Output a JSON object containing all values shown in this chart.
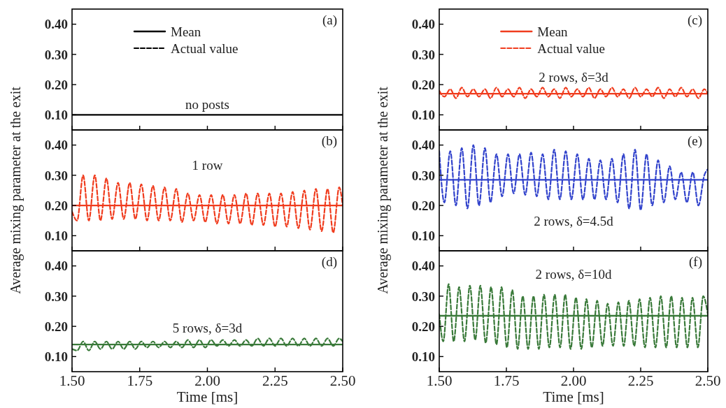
{
  "chart_data": [
    {
      "type": "line",
      "annotations": [
        "(a)",
        "no posts"
      ],
      "xlim": [
        1.5,
        2.5
      ],
      "ylim": [
        0.05,
        0.45
      ],
      "xticks": [
        {
          "value": 1.5,
          "label": null
        },
        {
          "value": 1.75,
          "label": null
        },
        {
          "value": 2.0,
          "label": null
        },
        {
          "value": 2.25,
          "label": null
        },
        {
          "value": 2.5,
          "label": null
        }
      ],
      "yticks": [
        {
          "value": 0.1,
          "label": "0.10"
        },
        {
          "value": 0.2,
          "label": "0.20"
        },
        {
          "value": 0.3,
          "label": "0.30"
        },
        {
          "value": 0.4,
          "label": "0.40"
        }
      ],
      "tick_labels": "y",
      "legend": "top",
      "series": [
        {
          "name": "Mean",
          "type": "line",
          "line_style": "solid",
          "color": "#000000",
          "x": [
            1.5,
            2.5
          ],
          "values": [
            0.1,
            0.1
          ]
        },
        {
          "name": "Actual value",
          "type": "line",
          "line_style": "dashed",
          "color": "#000000",
          "values": [
            null
          ]
        }
      ]
    },
    {
      "type": "line",
      "annotations": [
        "(c)",
        "2 rows, δ=3d"
      ],
      "xlim": [
        1.5,
        2.5
      ],
      "ylim": [
        0.05,
        0.45
      ],
      "xticks": [
        {
          "value": 1.5,
          "label": null
        },
        {
          "value": 1.75,
          "label": null
        },
        {
          "value": 2.0,
          "label": null
        },
        {
          "value": 2.25,
          "label": null
        },
        {
          "value": 2.5,
          "label": null
        }
      ],
      "yticks": [
        {
          "value": 0.1,
          "label": "0.10"
        },
        {
          "value": 0.2,
          "label": "0.20"
        },
        {
          "value": 0.3,
          "label": "0.30"
        },
        {
          "value": 0.4,
          "label": "0.40"
        }
      ],
      "tick_labels": "y",
      "legend": "top",
      "series": [
        {
          "name": "Mean",
          "type": "line",
          "line_style": "solid",
          "color": "#f03c1e",
          "x": [
            1.5,
            2.5
          ],
          "values": [
            0.17,
            0.17
          ]
        },
        {
          "name": "Actual value",
          "type": "line",
          "line_style": "dashed",
          "color": "#f03c1e",
          "x": [
            1.5,
            1.519,
            1.541,
            1.562,
            1.584,
            1.605,
            1.627,
            1.648,
            1.67,
            1.691,
            1.713,
            1.734,
            1.756,
            1.777,
            1.799,
            1.82,
            1.842,
            1.863,
            1.885,
            1.906,
            1.928,
            1.949,
            1.971,
            1.992,
            2.014,
            2.035,
            2.057,
            2.078,
            2.1,
            2.121,
            2.143,
            2.164,
            2.186,
            2.207,
            2.229,
            2.25,
            2.272,
            2.293,
            2.315,
            2.336,
            2.358,
            2.379,
            2.401,
            2.422,
            2.444,
            2.465,
            2.487,
            2.5
          ],
          "values": [
            0.18,
            0.16,
            0.185,
            0.155,
            0.19,
            0.16,
            0.185,
            0.16,
            0.185,
            0.155,
            0.19,
            0.16,
            0.185,
            0.16,
            0.19,
            0.155,
            0.185,
            0.16,
            0.19,
            0.16,
            0.185,
            0.155,
            0.19,
            0.16,
            0.185,
            0.16,
            0.19,
            0.155,
            0.185,
            0.16,
            0.19,
            0.16,
            0.185,
            0.155,
            0.19,
            0.16,
            0.185,
            0.16,
            0.19,
            0.155,
            0.185,
            0.16,
            0.19,
            0.16,
            0.185,
            0.155,
            0.185,
            0.17
          ]
        }
      ]
    },
    {
      "type": "line",
      "annotations": [
        "(b)",
        "1 row"
      ],
      "ylabel": "Average mixing parameter at the exit",
      "xlim": [
        1.5,
        2.5
      ],
      "ylim": [
        0.05,
        0.45
      ],
      "xticks": [
        {
          "value": 1.5,
          "label": null
        },
        {
          "value": 1.75,
          "label": null
        },
        {
          "value": 2.0,
          "label": null
        },
        {
          "value": 2.25,
          "label": null
        },
        {
          "value": 2.5,
          "label": null
        }
      ],
      "yticks": [
        {
          "value": 0.1,
          "label": "0.10"
        },
        {
          "value": 0.2,
          "label": "0.20"
        },
        {
          "value": 0.3,
          "label": "0.30"
        },
        {
          "value": 0.4,
          "label": "0.40"
        }
      ],
      "tick_labels": "y",
      "series": [
        {
          "type": "line",
          "line_style": "dashed",
          "color": "#f03c1e",
          "x": [
            1.5,
            1.519,
            1.541,
            1.562,
            1.584,
            1.605,
            1.627,
            1.648,
            1.67,
            1.691,
            1.713,
            1.734,
            1.756,
            1.777,
            1.799,
            1.82,
            1.842,
            1.863,
            1.885,
            1.906,
            1.928,
            1.949,
            1.971,
            1.992,
            2.014,
            2.035,
            2.057,
            2.078,
            2.1,
            2.121,
            2.143,
            2.164,
            2.186,
            2.207,
            2.229,
            2.25,
            2.272,
            2.293,
            2.315,
            2.336,
            2.358,
            2.379,
            2.401,
            2.422,
            2.444,
            2.465,
            2.487,
            2.5
          ],
          "values": [
            0.18,
            0.15,
            0.3,
            0.15,
            0.3,
            0.15,
            0.29,
            0.155,
            0.275,
            0.155,
            0.275,
            0.155,
            0.27,
            0.15,
            0.265,
            0.15,
            0.26,
            0.15,
            0.255,
            0.145,
            0.24,
            0.15,
            0.235,
            0.145,
            0.235,
            0.14,
            0.235,
            0.14,
            0.235,
            0.14,
            0.24,
            0.135,
            0.24,
            0.135,
            0.24,
            0.13,
            0.24,
            0.13,
            0.245,
            0.125,
            0.25,
            0.12,
            0.255,
            0.115,
            0.255,
            0.11,
            0.26,
            0.2
          ]
        },
        {
          "type": "line",
          "line_style": "solid",
          "color": "#f03c1e",
          "x": [
            1.5,
            2.5
          ],
          "values": [
            0.2,
            0.2
          ]
        }
      ]
    },
    {
      "type": "line",
      "annotations": [
        "(e)",
        "2 rows, δ=4.5d"
      ],
      "ylabel": "Average mixing parameter at the exit",
      "xlim": [
        1.5,
        2.5
      ],
      "ylim": [
        0.05,
        0.45
      ],
      "xticks": [
        {
          "value": 1.5,
          "label": null
        },
        {
          "value": 1.75,
          "label": null
        },
        {
          "value": 2.0,
          "label": null
        },
        {
          "value": 2.25,
          "label": null
        },
        {
          "value": 2.5,
          "label": null
        }
      ],
      "yticks": [
        {
          "value": 0.1,
          "label": "0.10"
        },
        {
          "value": 0.2,
          "label": "0.20"
        },
        {
          "value": 0.3,
          "label": "0.30"
        },
        {
          "value": 0.4,
          "label": "0.40"
        }
      ],
      "tick_labels": "y",
      "series": [
        {
          "type": "line",
          "line_style": "dashed",
          "color": "#3344cc",
          "x": [
            1.5,
            1.519,
            1.541,
            1.562,
            1.584,
            1.605,
            1.627,
            1.648,
            1.67,
            1.691,
            1.713,
            1.734,
            1.756,
            1.777,
            1.799,
            1.82,
            1.842,
            1.863,
            1.885,
            1.906,
            1.928,
            1.949,
            1.971,
            1.992,
            2.014,
            2.035,
            2.057,
            2.078,
            2.1,
            2.121,
            2.143,
            2.164,
            2.186,
            2.207,
            2.229,
            2.25,
            2.272,
            2.293,
            2.315,
            2.336,
            2.358,
            2.379,
            2.401,
            2.422,
            2.444,
            2.465,
            2.487,
            2.5
          ],
          "values": [
            0.38,
            0.21,
            0.38,
            0.2,
            0.39,
            0.19,
            0.4,
            0.2,
            0.39,
            0.21,
            0.37,
            0.23,
            0.37,
            0.24,
            0.37,
            0.235,
            0.375,
            0.23,
            0.37,
            0.22,
            0.385,
            0.22,
            0.38,
            0.22,
            0.37,
            0.22,
            0.355,
            0.22,
            0.35,
            0.22,
            0.355,
            0.21,
            0.37,
            0.19,
            0.385,
            0.185,
            0.37,
            0.2,
            0.35,
            0.21,
            0.33,
            0.22,
            0.31,
            0.21,
            0.31,
            0.2,
            0.3,
            0.32
          ]
        },
        {
          "type": "line",
          "line_style": "solid",
          "color": "#3344cc",
          "x": [
            1.5,
            2.5
          ],
          "values": [
            0.285,
            0.285
          ]
        }
      ]
    },
    {
      "type": "line",
      "annotations": [
        "(d)",
        "5 rows, δ=3d"
      ],
      "xlabel": "Time [ms]",
      "xlim": [
        1.5,
        2.5
      ],
      "ylim": [
        0.05,
        0.45
      ],
      "xticks": [
        {
          "value": 1.5,
          "label": "1.50"
        },
        {
          "value": 1.75,
          "label": "1.75"
        },
        {
          "value": 2.0,
          "label": "2.00"
        },
        {
          "value": 2.25,
          "label": "2.25"
        },
        {
          "value": 2.5,
          "label": "2.50"
        }
      ],
      "yticks": [
        {
          "value": 0.1,
          "label": "0.10"
        },
        {
          "value": 0.2,
          "label": "0.20"
        },
        {
          "value": 0.3,
          "label": "0.30"
        },
        {
          "value": 0.4,
          "label": "0.40"
        }
      ],
      "series": [
        {
          "type": "line",
          "line_style": "dashed",
          "color": "#3a7a3a",
          "x": [
            1.5,
            1.519,
            1.541,
            1.562,
            1.584,
            1.605,
            1.627,
            1.648,
            1.67,
            1.691,
            1.713,
            1.734,
            1.756,
            1.777,
            1.799,
            1.82,
            1.842,
            1.863,
            1.885,
            1.906,
            1.928,
            1.949,
            1.971,
            1.992,
            2.014,
            2.035,
            2.057,
            2.078,
            2.1,
            2.121,
            2.143,
            2.164,
            2.186,
            2.207,
            2.229,
            2.25,
            2.272,
            2.293,
            2.315,
            2.336,
            2.358,
            2.379,
            2.401,
            2.422,
            2.444,
            2.465,
            2.487,
            2.5
          ],
          "values": [
            0.125,
            0.12,
            0.15,
            0.12,
            0.15,
            0.125,
            0.15,
            0.125,
            0.15,
            0.125,
            0.15,
            0.125,
            0.15,
            0.13,
            0.15,
            0.13,
            0.15,
            0.13,
            0.15,
            0.13,
            0.155,
            0.13,
            0.155,
            0.13,
            0.155,
            0.135,
            0.155,
            0.135,
            0.155,
            0.135,
            0.155,
            0.135,
            0.16,
            0.135,
            0.16,
            0.135,
            0.16,
            0.135,
            0.16,
            0.135,
            0.16,
            0.135,
            0.16,
            0.135,
            0.16,
            0.135,
            0.16,
            0.15
          ]
        },
        {
          "type": "line",
          "line_style": "solid",
          "color": "#3a7a3a",
          "x": [
            1.5,
            2.5
          ],
          "values": [
            0.14,
            0.14
          ]
        }
      ]
    },
    {
      "type": "line",
      "annotations": [
        "(f)",
        "2 rows, δ=10d"
      ],
      "xlabel": "Time [ms]",
      "xlim": [
        1.5,
        2.5
      ],
      "ylim": [
        0.05,
        0.45
      ],
      "xticks": [
        {
          "value": 1.5,
          "label": "1.50"
        },
        {
          "value": 1.75,
          "label": "1.75"
        },
        {
          "value": 2.0,
          "label": "2.00"
        },
        {
          "value": 2.25,
          "label": "2.25"
        },
        {
          "value": 2.5,
          "label": "2.50"
        }
      ],
      "yticks": [
        {
          "value": 0.1,
          "label": "0.10"
        },
        {
          "value": 0.2,
          "label": "0.20"
        },
        {
          "value": 0.3,
          "label": "0.30"
        },
        {
          "value": 0.4,
          "label": "0.40"
        }
      ],
      "series": [
        {
          "type": "line",
          "line_style": "dashed",
          "color": "#3a7a3a",
          "x": [
            1.5,
            1.515,
            1.535,
            1.554,
            1.574,
            1.594,
            1.614,
            1.634,
            1.653,
            1.673,
            1.693,
            1.713,
            1.732,
            1.752,
            1.772,
            1.792,
            1.811,
            1.831,
            1.851,
            1.871,
            1.89,
            1.91,
            1.93,
            1.95,
            1.969,
            1.989,
            2.009,
            2.029,
            2.048,
            2.068,
            2.088,
            2.108,
            2.127,
            2.147,
            2.167,
            2.187,
            2.206,
            2.226,
            2.246,
            2.266,
            2.285,
            2.305,
            2.325,
            2.345,
            2.364,
            2.384,
            2.404,
            2.424,
            2.443,
            2.463,
            2.483,
            2.5
          ],
          "values": [
            0.24,
            0.15,
            0.34,
            0.15,
            0.33,
            0.15,
            0.335,
            0.155,
            0.335,
            0.145,
            0.33,
            0.14,
            0.33,
            0.13,
            0.32,
            0.125,
            0.3,
            0.125,
            0.3,
            0.125,
            0.305,
            0.13,
            0.305,
            0.13,
            0.305,
            0.125,
            0.295,
            0.125,
            0.29,
            0.13,
            0.285,
            0.135,
            0.275,
            0.135,
            0.28,
            0.135,
            0.285,
            0.135,
            0.29,
            0.13,
            0.295,
            0.13,
            0.3,
            0.13,
            0.3,
            0.13,
            0.295,
            0.13,
            0.295,
            0.13,
            0.3,
            0.24
          ]
        },
        {
          "type": "line",
          "line_style": "solid",
          "color": "#3a7a3a",
          "x": [
            1.5,
            2.5
          ],
          "values": [
            0.235,
            0.235
          ]
        }
      ]
    }
  ]
}
